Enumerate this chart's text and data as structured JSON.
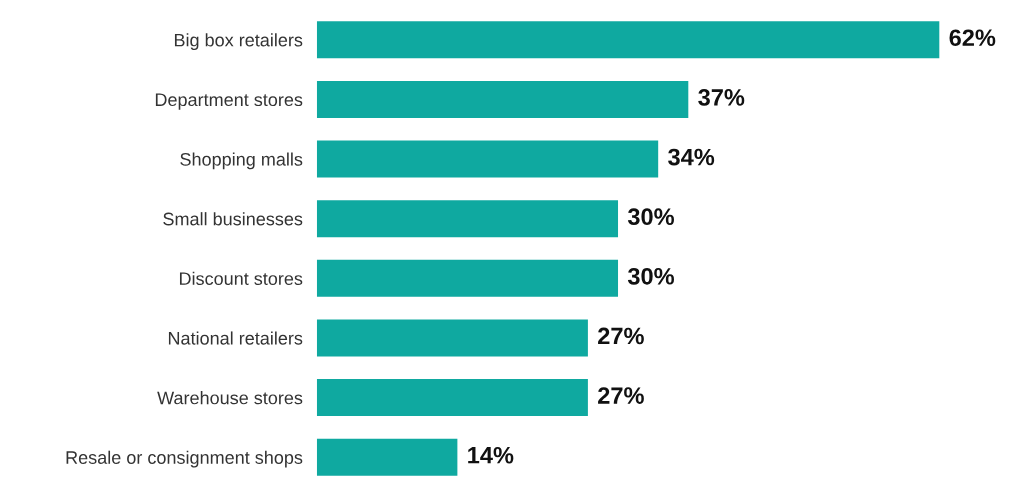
{
  "chart_data": {
    "type": "bar",
    "orientation": "horizontal",
    "categories": [
      "Big box retailers",
      "Department stores",
      "Shopping malls",
      "Small businesses",
      "Discount stores",
      "National retailers",
      "Warehouse stores",
      "Resale or consignment shops"
    ],
    "values": [
      62,
      37,
      34,
      30,
      30,
      27,
      27,
      14
    ],
    "value_labels": [
      "62%",
      "37%",
      "34%",
      "30%",
      "30%",
      "27%",
      "27%",
      "14%"
    ],
    "color": "#0fa9a0",
    "grid": false,
    "legend": false,
    "tick_labels": "y"
  }
}
